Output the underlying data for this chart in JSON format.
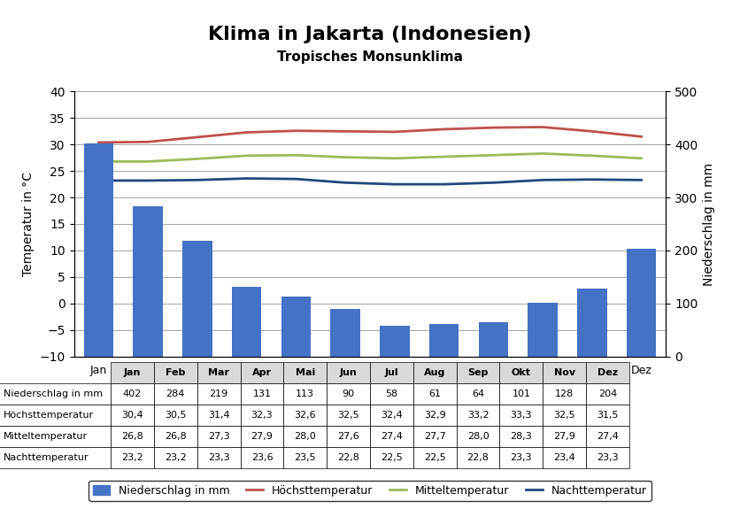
{
  "title": "Klima in Jakarta (Indonesien)",
  "subtitle": "Tropisches Monsunklima",
  "months": [
    "Jan",
    "Feb",
    "Mar",
    "Apr",
    "Mai",
    "Jun",
    "Jul",
    "Aug",
    "Sep",
    "Okt",
    "Nov",
    "Dez"
  ],
  "niederschlag": [
    402,
    284,
    219,
    131,
    113,
    90,
    58,
    61,
    64,
    101,
    128,
    204
  ],
  "hoechsttemperatur": [
    30.4,
    30.5,
    31.4,
    32.3,
    32.6,
    32.5,
    32.4,
    32.9,
    33.2,
    33.3,
    32.5,
    31.5
  ],
  "mitteltemperatur": [
    26.8,
    26.8,
    27.3,
    27.9,
    28.0,
    27.6,
    27.4,
    27.7,
    28.0,
    28.3,
    27.9,
    27.4
  ],
  "nachttemperatur": [
    23.2,
    23.2,
    23.3,
    23.6,
    23.5,
    22.8,
    22.5,
    22.5,
    22.8,
    23.3,
    23.4,
    23.3
  ],
  "bar_color": "#4472C4",
  "hoechst_color": "#C0504D",
  "mittel_color": "#9BBB59",
  "nacht_color": "#1F497D",
  "background_color": "#FFFFFF",
  "table_bg": "#FFFFFF",
  "left_ylim": [
    -10,
    40
  ],
  "right_ylim": [
    0,
    500
  ],
  "left_yticks": [
    -10,
    -5,
    0,
    5,
    10,
    15,
    20,
    25,
    30,
    35,
    40
  ],
  "right_yticks": [
    0,
    100,
    200,
    300,
    400,
    500
  ],
  "ylabel_left": "Temperatur in °C",
  "ylabel_right": "Niederschlag in mm",
  "table_row_labels": [
    "Niederschlag in mm",
    "Höchsttemperatur",
    "Mitteltemperatur",
    "Nachttemperatur"
  ],
  "table_niederschlag": [
    "402",
    "284",
    "219",
    "131",
    "113",
    "90",
    "58",
    "61",
    "64",
    "101",
    "128",
    "204"
  ],
  "table_hoechst": [
    "30,4",
    "30,5",
    "31,4",
    "32,3",
    "32,6",
    "32,5",
    "32,4",
    "32,9",
    "33,2",
    "33,3",
    "32,5",
    "31,5"
  ],
  "table_mittel": [
    "26,8",
    "26,8",
    "27,3",
    "27,9",
    "28,0",
    "27,6",
    "27,4",
    "27,7",
    "28,0",
    "28,3",
    "27,9",
    "27,4"
  ],
  "table_nacht": [
    "23,2",
    "23,2",
    "23,3",
    "23,6",
    "23,5",
    "22,8",
    "22,5",
    "22,5",
    "22,8",
    "23,3",
    "23,4",
    "23,3"
  ],
  "legend_labels": [
    "Niederschlag in mm",
    "Höchsttemperatur",
    "Mitteltemperatur",
    "Nachttemperatur"
  ]
}
